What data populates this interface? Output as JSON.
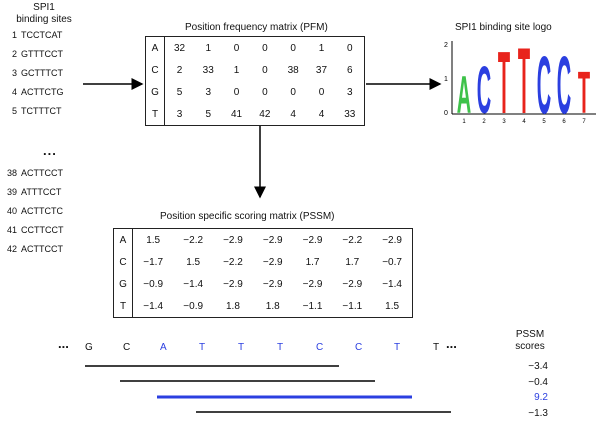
{
  "sites": {
    "title_line1": "SPI1",
    "title_line2": "binding sites",
    "rows_top": [
      {
        "num": "1",
        "seq": "TCCTCAT"
      },
      {
        "num": "2",
        "seq": "GTTTCCT"
      },
      {
        "num": "3",
        "seq": "GCTTTCT"
      },
      {
        "num": "4",
        "seq": "ACTTCTG"
      },
      {
        "num": "5",
        "seq": "TCTTTCT"
      }
    ],
    "ellipsis": "...",
    "rows_bottom": [
      {
        "num": "38",
        "seq": "ACTTCCT"
      },
      {
        "num": "39",
        "seq": "ATTTCCT"
      },
      {
        "num": "40",
        "seq": "ACTTCTC"
      },
      {
        "num": "41",
        "seq": "CCTTCCT"
      },
      {
        "num": "42",
        "seq": "ACTTCCT"
      }
    ]
  },
  "pfm": {
    "title": "Position frequency matrix (PFM)",
    "rows": [
      {
        "base": "A",
        "values": [
          "32",
          "1",
          "0",
          "0",
          "0",
          "1",
          "0"
        ]
      },
      {
        "base": "C",
        "values": [
          "2",
          "33",
          "1",
          "0",
          "38",
          "37",
          "6"
        ]
      },
      {
        "base": "G",
        "values": [
          "5",
          "3",
          "0",
          "0",
          "0",
          "0",
          "3"
        ]
      },
      {
        "base": "T",
        "values": [
          "3",
          "5",
          "41",
          "42",
          "4",
          "4",
          "33"
        ]
      }
    ]
  },
  "logo": {
    "title": "SPI1 binding site logo",
    "y_ticks": [
      "2",
      "1",
      "0"
    ],
    "x_ticks": [
      "1",
      "2",
      "3",
      "4",
      "5",
      "6",
      "7"
    ],
    "colors": {
      "A": "#3ec24a",
      "C": "#2b3fe0",
      "G": "#f2a21a",
      "T": "#e8231c"
    },
    "letters": [
      "A",
      "C",
      "T",
      "T",
      "C",
      "C",
      "T"
    ]
  },
  "pssm": {
    "title": "Position specific scoring matrix (PSSM)",
    "rows": [
      {
        "base": "A",
        "values": [
          "1.5",
          "−2.2",
          "−2.9",
          "−2.9",
          "−2.9",
          "−2.2",
          "−2.9"
        ]
      },
      {
        "base": "C",
        "values": [
          "−1.7",
          "1.5",
          "−2.2",
          "−2.9",
          "1.7",
          "1.7",
          "−0.7"
        ]
      },
      {
        "base": "G",
        "values": [
          "−0.9",
          "−1.4",
          "−2.9",
          "−2.9",
          "−2.9",
          "−2.9",
          "−1.4"
        ]
      },
      {
        "base": "T",
        "values": [
          "−1.4",
          "−0.9",
          "1.8",
          "1.8",
          "−1.1",
          "−1.1",
          "1.5"
        ]
      }
    ]
  },
  "scan": {
    "ellipsis_left": "...",
    "ellipsis_right": "...",
    "bases": [
      "G",
      "C",
      "A",
      "T",
      "T",
      "T",
      "C",
      "C",
      "T",
      "T"
    ],
    "highlight_color": "#2b3fe0",
    "scores_title_line1": "PSSM",
    "scores_title_line2": "scores",
    "scores": [
      "−3.4",
      "−0.4",
      "9.2",
      "−1.3"
    ],
    "highlight_score_index": 2
  }
}
